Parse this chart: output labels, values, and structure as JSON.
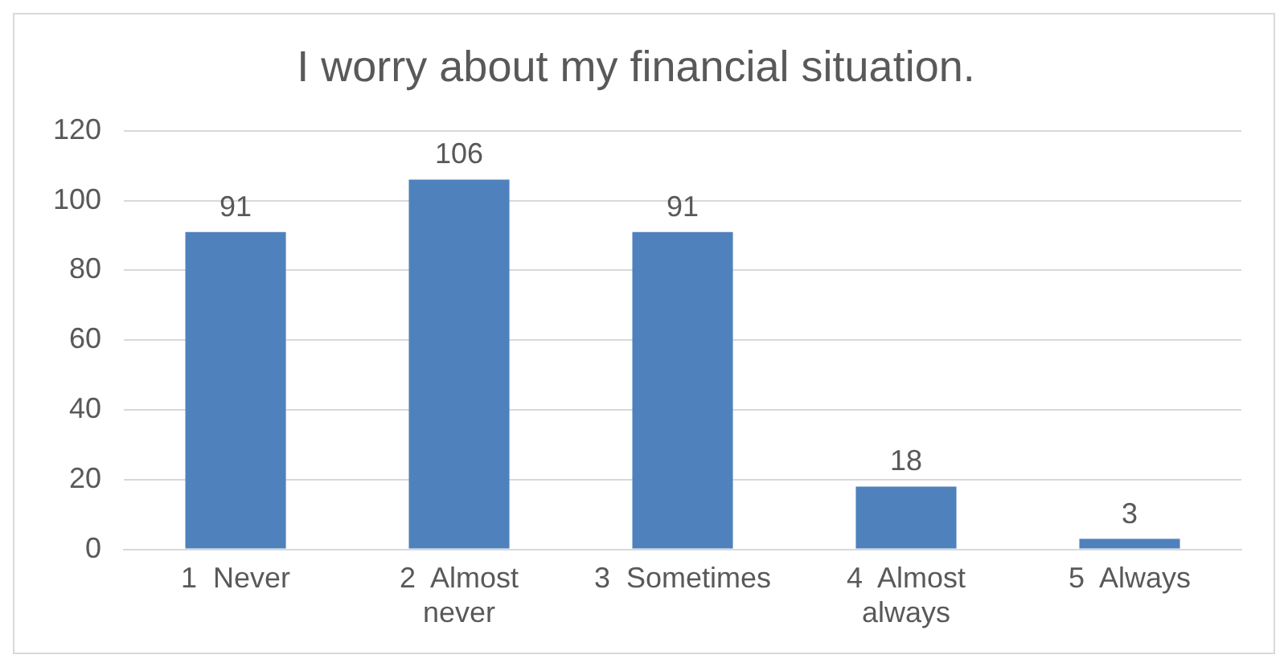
{
  "chart_data": {
    "type": "bar",
    "title": "I worry about my financial situation.",
    "categories": [
      "1  Never",
      "2  Almost never",
      "3  Sometimes",
      "4  Almost always",
      "5  Always"
    ],
    "values": [
      91,
      106,
      91,
      18,
      3
    ],
    "color": "#4f81bd",
    "ylim": [
      0,
      120
    ],
    "yticks": [
      0,
      20,
      40,
      60,
      80,
      100,
      120
    ],
    "grid": "y",
    "data_labels": true
  }
}
